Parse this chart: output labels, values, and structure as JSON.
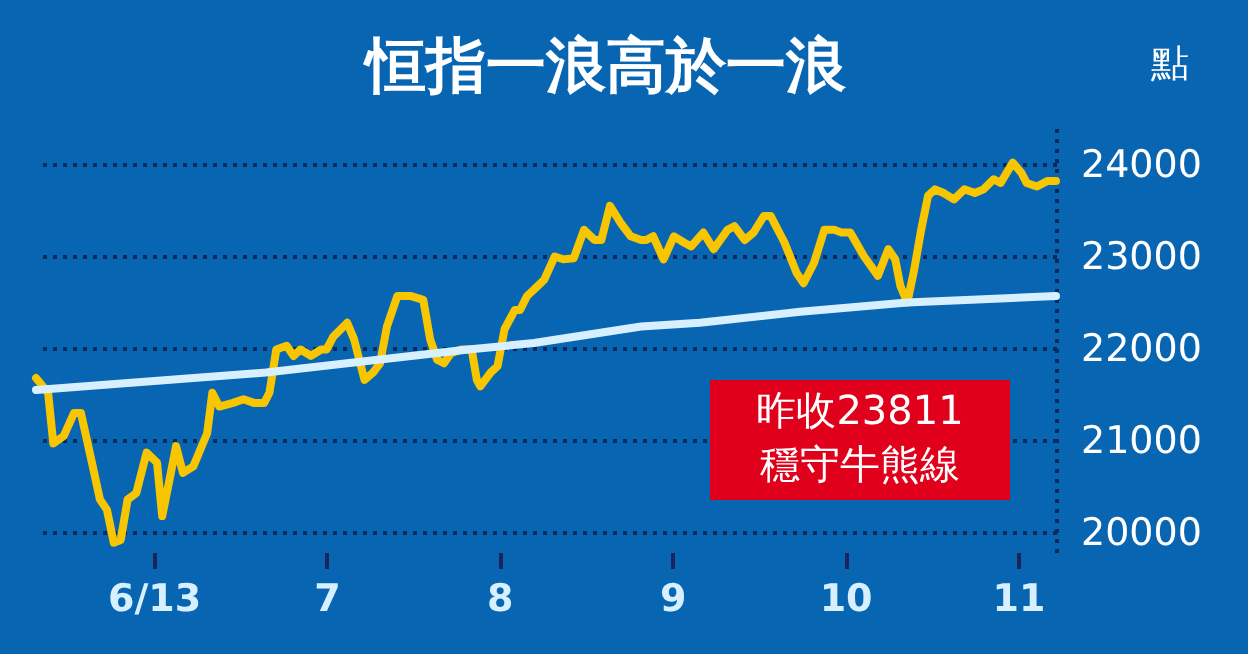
{
  "chart_data": {
    "type": "line",
    "title": "恒指一浪高於一浪",
    "ylabel": "點",
    "xlim": [
      5.32,
      11.22
    ],
    "xticks": [
      {
        "value": 6,
        "label": "6/13"
      },
      7,
      8,
      9,
      10,
      11
    ],
    "ylim": [
      19780,
      24430
    ],
    "yticks": [
      20000,
      21000,
      22000,
      23000,
      24000
    ],
    "grid": "y",
    "marker": "none",
    "line_style": "solid",
    "series": [
      {
        "color": "#f7c600",
        "x": [
          5.32,
          5.39,
          5.42,
          5.48,
          5.54,
          5.58,
          5.64,
          5.69,
          5.73,
          5.77,
          5.81,
          5.85,
          5.9,
          5.96,
          6.02,
          6.05,
          6.1,
          6.13,
          6.17,
          6.23,
          6.31,
          6.34,
          6.38,
          6.46,
          6.52,
          6.58,
          6.64,
          6.67,
          6.71,
          6.77,
          6.81,
          6.85,
          6.91,
          6.97,
          7.0,
          7.04,
          7.12,
          7.16,
          7.22,
          7.27,
          7.31,
          7.35,
          7.41,
          7.49,
          7.56,
          7.6,
          7.64,
          7.68,
          7.72,
          7.78,
          7.84,
          7.87,
          7.89,
          7.95,
          7.99,
          8.03,
          8.09,
          8.12,
          8.16,
          8.2,
          8.26,
          8.32,
          8.37,
          8.43,
          8.49,
          8.55,
          8.59,
          8.64,
          8.7,
          8.76,
          8.82,
          8.85,
          8.89,
          8.95,
          9.01,
          9.07,
          9.11,
          9.18,
          9.24,
          9.32,
          9.36,
          9.42,
          9.47,
          9.53,
          9.57,
          9.65,
          9.72,
          9.76,
          9.82,
          9.88,
          9.94,
          9.98,
          10.03,
          10.11,
          10.19,
          10.25,
          10.29,
          10.32,
          10.36,
          10.4,
          10.44,
          10.48,
          10.52,
          10.57,
          10.63,
          10.69,
          10.75,
          10.8,
          10.86,
          10.9,
          10.97,
          11.02,
          11.05,
          11.11,
          11.17,
          11.22
        ],
        "values": [
          21670,
          21510,
          20960,
          21040,
          21290,
          21290,
          20780,
          20350,
          20240,
          19880,
          19910,
          20350,
          20420,
          20860,
          20750,
          20170,
          20640,
          20930,
          20640,
          20710,
          21070,
          21510,
          21360,
          21400,
          21440,
          21400,
          21400,
          21510,
          21980,
          22020,
          21910,
          21980,
          21910,
          21980,
          21980,
          22120,
          22270,
          22090,
          21650,
          21730,
          21830,
          22230,
          22560,
          22560,
          22520,
          22090,
          21870,
          21830,
          21940,
          21980,
          21980,
          21650,
          21580,
          21730,
          21800,
          22200,
          22410,
          22410,
          22560,
          22630,
          22740,
          22990,
          22960,
          22970,
          23280,
          23170,
          23170,
          23540,
          23360,
          23210,
          23170,
          23170,
          23210,
          22960,
          23210,
          23140,
          23100,
          23250,
          23070,
          23280,
          23320,
          23170,
          23250,
          23430,
          23430,
          23140,
          22810,
          22700,
          22920,
          23280,
          23280,
          23250,
          23250,
          22990,
          22780,
          23070,
          22960,
          22670,
          22490,
          22850,
          23280,
          23650,
          23720,
          23680,
          23610,
          23720,
          23680,
          23720,
          23830,
          23790,
          24010,
          23900,
          23790,
          23750,
          23810,
          23810
        ]
      },
      {
        "color": "#d6f0ff",
        "x": [
          5.32,
          6.65,
          7.12,
          7.82,
          8.2,
          8.82,
          9.16,
          9.74,
          10.36,
          11.22
        ],
        "values": [
          21540,
          21730,
          21830,
          21980,
          22050,
          22230,
          22270,
          22390,
          22490,
          22560
        ]
      }
    ],
    "annotations": [
      "昨收23811\n穩守牛熊線"
    ]
  }
}
